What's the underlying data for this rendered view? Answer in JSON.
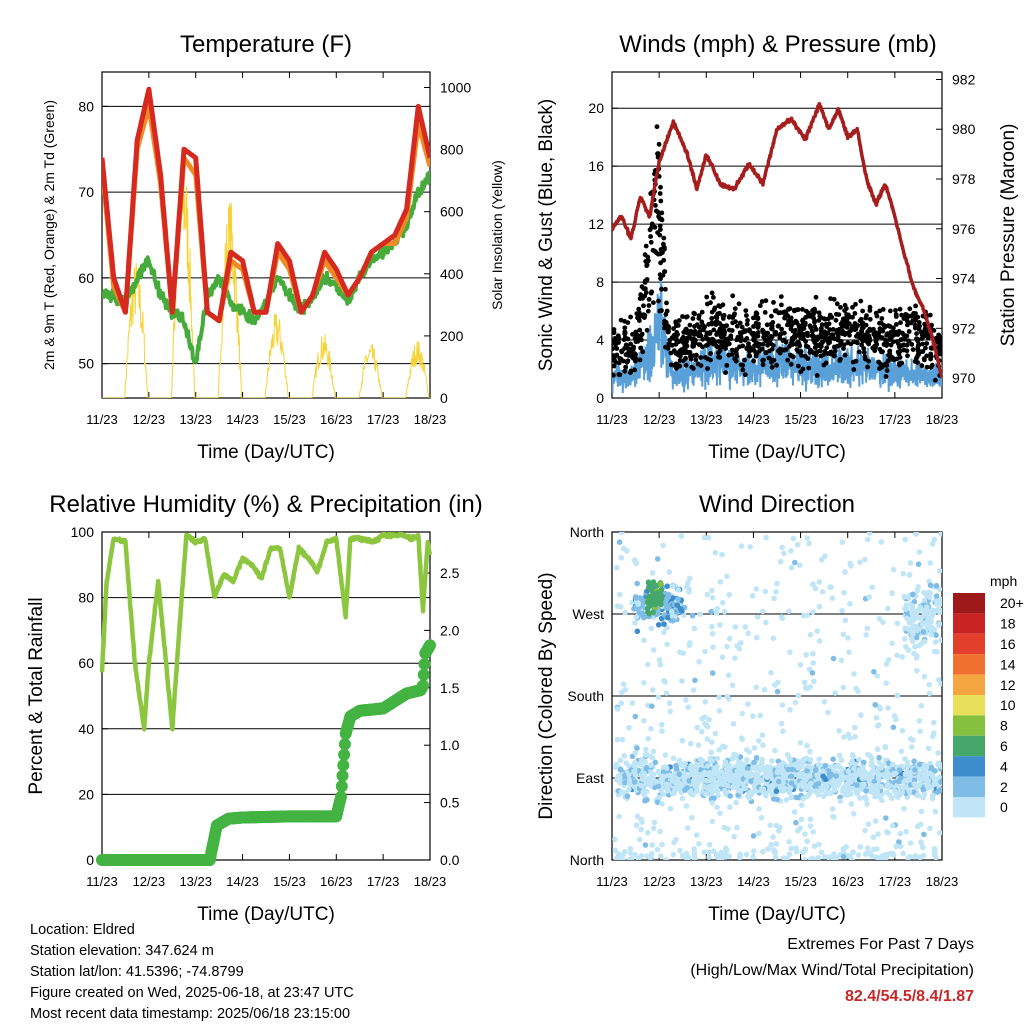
{
  "time_ticks": [
    "11/23",
    "12/23",
    "13/23",
    "14/23",
    "15/23",
    "16/23",
    "17/23",
    "18/23"
  ],
  "chart_data": [
    {
      "type": "line",
      "title": "Temperature (F)",
      "xlabel": "Time (Day/UTC)",
      "ylabel": "2m & 9m T (Red, Orange) & 2m Td (Green)",
      "ylabel_right": "Solar Insolation (Yellow)",
      "ylim": [
        46,
        84
      ],
      "ylim_right": [
        0,
        1050
      ],
      "yticks": [
        50,
        60,
        70,
        80
      ],
      "yticks_right": [
        0,
        200,
        400,
        600,
        800,
        1000
      ],
      "x": [
        0,
        0.25,
        0.5,
        0.75,
        1.0,
        1.25,
        1.5,
        1.75,
        2.0,
        2.25,
        2.5,
        2.75,
        3.0,
        3.25,
        3.5,
        3.75,
        4.0,
        4.25,
        4.5,
        4.75,
        5.0,
        5.25,
        5.5,
        5.75,
        6.0,
        6.25,
        6.5,
        6.75,
        7.0
      ],
      "series": [
        {
          "color": "#d62a20",
          "values": [
            74,
            60,
            56,
            76,
            82,
            72,
            56,
            75,
            74,
            56,
            55,
            63,
            62,
            56,
            56,
            64,
            62,
            56,
            58,
            63,
            61,
            58,
            60,
            63,
            64,
            65,
            68,
            80,
            74
          ]
        },
        {
          "color": "#f08a24",
          "values": [
            73,
            59,
            56,
            75,
            80,
            71,
            56,
            74,
            72,
            56,
            55,
            62,
            61,
            56,
            56,
            63,
            61,
            56,
            58,
            62,
            60,
            58,
            60,
            63,
            64,
            64,
            67,
            78,
            73
          ]
        },
        {
          "color": "#46ab3a",
          "values": [
            58,
            58,
            57,
            60,
            62,
            58,
            56,
            55,
            50,
            58,
            60,
            57,
            56,
            55,
            57,
            60,
            58,
            56,
            58,
            60,
            59,
            57,
            60,
            62,
            63,
            64,
            66,
            70,
            72
          ]
        }
      ],
      "solar": {
        "color": "#f5d335",
        "peaks": [
          0,
          450,
          820,
          650,
          280,
          210,
          180,
          190,
          130,
          1000
        ]
      }
    },
    {
      "type": "scatter",
      "title": "Winds (mph) & Pressure (mb)",
      "xlabel": "Time (Day/UTC)",
      "ylabel": "Sonic Wind & Gust (Blue, Black)",
      "ylabel_right": "Station Pressure (Maroon)",
      "ylim": [
        0,
        22.5
      ],
      "ylim_right": [
        969.2,
        982.3
      ],
      "yticks": [
        0,
        4,
        8,
        12,
        16,
        20
      ],
      "yticks_right": [
        970,
        972,
        974,
        976,
        978,
        980,
        982
      ],
      "pressure": {
        "color": "#a51d1d",
        "x": [
          0,
          0.2,
          0.4,
          0.6,
          0.8,
          1.0,
          1.3,
          1.6,
          1.8,
          2.0,
          2.3,
          2.6,
          2.9,
          3.2,
          3.5,
          3.8,
          4.1,
          4.4,
          4.6,
          4.8,
          5.0,
          5.2,
          5.4,
          5.6,
          5.8,
          6.0,
          6.2,
          6.4,
          6.6,
          6.8,
          7.0
        ],
        "values": [
          976,
          976.5,
          975.6,
          977.3,
          976.5,
          978.7,
          980.3,
          979,
          977.6,
          979,
          977.8,
          977.6,
          978.6,
          977.8,
          980,
          980.4,
          979.6,
          981,
          980,
          980.8,
          979.7,
          980,
          978,
          977,
          977.8,
          976.5,
          975,
          973.6,
          972.8,
          971.6,
          970
        ]
      },
      "wind_color": "#5aa0d8",
      "gust_color": "#000000"
    },
    {
      "type": "line",
      "title": "Relative Humidity (%) & Precipitation (in)",
      "xlabel": "Time (Day/UTC)",
      "ylabel": "Percent & Total Rainfall",
      "ylim": [
        0,
        100
      ],
      "ylim_right": [
        0,
        2.857
      ],
      "yticks": [
        0,
        20,
        40,
        60,
        80,
        100
      ],
      "yticks_right": [
        "0.0",
        "0.5",
        "1.0",
        "1.5",
        "2.0",
        "2.5"
      ],
      "humidity": {
        "color": "#8cc63f",
        "x": [
          0,
          0.1,
          0.25,
          0.5,
          0.7,
          0.9,
          1.0,
          1.2,
          1.5,
          1.7,
          1.8,
          2.0,
          2.2,
          2.4,
          2.6,
          2.8,
          3.0,
          3.2,
          3.4,
          3.6,
          3.8,
          4.0,
          4.2,
          4.4,
          4.6,
          4.8,
          5.0,
          5.2,
          5.3,
          5.5,
          5.8,
          6.0,
          6.2,
          6.4,
          6.6,
          6.75,
          6.85,
          6.95,
          7.0
        ],
        "values": [
          57,
          85,
          98,
          97,
          60,
          40,
          60,
          85,
          40,
          80,
          99,
          97,
          98,
          80,
          87,
          85,
          92,
          90,
          86,
          95,
          95,
          80,
          95,
          92,
          88,
          97,
          98,
          74,
          98,
          98,
          97,
          99,
          99,
          99,
          98,
          99,
          76,
          97,
          93
        ]
      },
      "precip": {
        "color": "#43b342",
        "x": [
          0,
          2.3,
          2.45,
          2.7,
          3.0,
          4.0,
          5.0,
          5.1,
          5.2,
          5.3,
          5.5,
          6.0,
          6.5,
          6.8,
          6.85,
          6.9,
          7.0
        ],
        "values": [
          0,
          0,
          0.3,
          0.36,
          0.37,
          0.38,
          0.38,
          0.55,
          1.1,
          1.25,
          1.3,
          1.32,
          1.45,
          1.48,
          1.52,
          1.8,
          1.87
        ]
      }
    },
    {
      "type": "scatter",
      "title": "Wind Direction",
      "xlabel": "Time (Day/UTC)",
      "ylabel": "Direction (Colored By Speed)",
      "yticks": [
        "North",
        "West",
        "South",
        "East",
        "North"
      ],
      "legend_title": "mph",
      "legend": [
        {
          "label": "20+",
          "color": "#9e1a1a"
        },
        {
          "label": "18",
          "color": "#c92423"
        },
        {
          "label": "16",
          "color": "#e2402b"
        },
        {
          "label": "14",
          "color": "#f07030"
        },
        {
          "label": "12",
          "color": "#f5a640"
        },
        {
          "label": "10",
          "color": "#e8e05a"
        },
        {
          "label": "8",
          "color": "#86c03f"
        },
        {
          "label": "6",
          "color": "#45a86a"
        },
        {
          "label": "4",
          "color": "#3d8ccc"
        },
        {
          "label": "2",
          "color": "#7fbde6"
        },
        {
          "label": "0",
          "color": "#bfe5f7"
        }
      ]
    }
  ],
  "footer": {
    "location": "Location: Eldred",
    "elevation": "Station elevation: 347.624 m",
    "latlon": "Station lat/lon: 41.5396; -74.8799",
    "created": "Figure created on Wed, 2025-06-18, at 23:47 UTC",
    "recent": "Most recent data timestamp: 2025/06/18 23:15:00"
  },
  "extremes": {
    "title": "Extremes For Past 7 Days",
    "subtitle": "(High/Low/Max Wind/Total Precipitation)",
    "values": "82.4/54.5/8.4/1.87"
  }
}
